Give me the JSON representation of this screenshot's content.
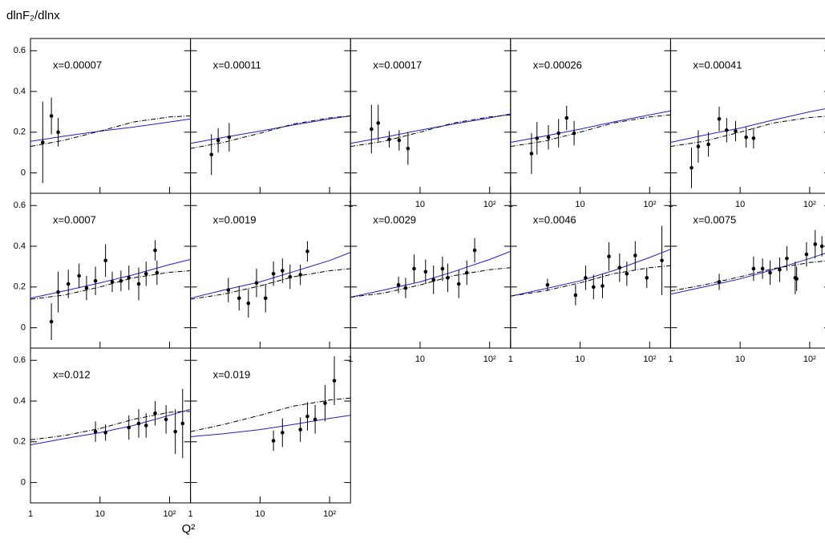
{
  "title": "dlnF₂/dlnx",
  "x_label": "Q²",
  "chart_data": [
    {
      "type": "scatter",
      "label": "x=0.00007",
      "x": [
        1.5,
        2.0,
        2.5
      ],
      "values": [
        0.15,
        0.28,
        0.2
      ],
      "errors": [
        0.2,
        0.09,
        0.07
      ],
      "lines": [
        {
          "style": "solid",
          "color": "#1f1fd0",
          "x": [
            1,
            3,
            10,
            30,
            100,
            200
          ],
          "values": [
            0.155,
            0.18,
            0.205,
            0.225,
            0.25,
            0.265
          ]
        },
        {
          "style": "dashdot",
          "color": "#000000",
          "x": [
            1,
            3,
            10,
            30,
            100,
            200
          ],
          "values": [
            0.13,
            0.16,
            0.205,
            0.25,
            0.275,
            0.28
          ]
        }
      ],
      "xlim": [
        1,
        200
      ],
      "ylim": [
        -0.1,
        0.66
      ],
      "log_x": true,
      "xticks": [
        1,
        10,
        {
          "value": 100,
          "label": "10²"
        }
      ],
      "yticks": [
        0,
        0.2,
        0.4,
        0.6
      ],
      "xtick_labels": false,
      "ytick_labels": true
    },
    {
      "type": "scatter",
      "label": "x=0.00011",
      "x": [
        2.0,
        2.5,
        3.6
      ],
      "values": [
        0.09,
        0.16,
        0.175
      ],
      "errors": [
        0.1,
        0.06,
        0.07
      ],
      "lines": [
        {
          "style": "solid",
          "color": "#1f1fd0",
          "x": [
            1,
            3,
            10,
            30,
            100,
            200
          ],
          "values": [
            0.145,
            0.175,
            0.205,
            0.235,
            0.265,
            0.28
          ]
        },
        {
          "style": "dashdot",
          "color": "#000000",
          "x": [
            1,
            3,
            10,
            30,
            100,
            200
          ],
          "values": [
            0.12,
            0.15,
            0.195,
            0.24,
            0.27,
            0.28
          ]
        }
      ],
      "xlim": [
        1,
        200
      ],
      "ylim": [
        -0.1,
        0.66
      ],
      "log_x": true,
      "xticks": [
        1,
        10,
        {
          "value": 100,
          "label": "10²"
        }
      ],
      "yticks": [
        0,
        0.2,
        0.4,
        0.6
      ],
      "xtick_labels": false,
      "ytick_labels": false
    },
    {
      "type": "scatter",
      "label": "x=0.00017",
      "x": [
        2.0,
        2.5,
        3.6,
        5.0,
        6.7
      ],
      "values": [
        0.215,
        0.245,
        0.165,
        0.16,
        0.12
      ],
      "errors": [
        0.12,
        0.09,
        0.04,
        0.05,
        0.08
      ],
      "lines": [
        {
          "style": "solid",
          "color": "#1f1fd0",
          "x": [
            1,
            3,
            10,
            30,
            100,
            200
          ],
          "values": [
            0.145,
            0.175,
            0.21,
            0.24,
            0.27,
            0.29
          ]
        },
        {
          "style": "dashdot",
          "color": "#000000",
          "x": [
            1,
            3,
            10,
            30,
            100,
            200
          ],
          "values": [
            0.13,
            0.155,
            0.2,
            0.245,
            0.275,
            0.285
          ]
        }
      ],
      "xlim": [
        1,
        200
      ],
      "ylim": [
        -0.1,
        0.66
      ],
      "log_x": true,
      "xticks": [
        1,
        10,
        {
          "value": 100,
          "label": "10²"
        }
      ],
      "yticks": [
        0,
        0.2,
        0.4,
        0.6
      ],
      "xtick_labels": true,
      "ytick_labels": false
    },
    {
      "type": "scatter",
      "label": "x=0.00026",
      "x": [
        2.0,
        2.4,
        3.5,
        4.9,
        6.4,
        8.2
      ],
      "values": [
        0.095,
        0.17,
        0.175,
        0.195,
        0.27,
        0.195
      ],
      "errors": [
        0.1,
        0.08,
        0.06,
        0.07,
        0.06,
        0.06
      ],
      "lines": [
        {
          "style": "solid",
          "color": "#1f1fd0",
          "x": [
            1,
            3,
            10,
            30,
            100,
            200
          ],
          "values": [
            0.15,
            0.18,
            0.215,
            0.25,
            0.285,
            0.305
          ]
        },
        {
          "style": "dashdot",
          "color": "#000000",
          "x": [
            1,
            3,
            10,
            30,
            100,
            200
          ],
          "values": [
            0.13,
            0.155,
            0.2,
            0.245,
            0.275,
            0.285
          ]
        }
      ],
      "xlim": [
        1,
        200
      ],
      "ylim": [
        -0.1,
        0.66
      ],
      "log_x": true,
      "xticks": [
        1,
        10,
        {
          "value": 100,
          "label": "10²"
        }
      ],
      "yticks": [
        0,
        0.2,
        0.4,
        0.6
      ],
      "xtick_labels": true,
      "ytick_labels": false
    },
    {
      "type": "scatter",
      "label": "x=0.00041",
      "x": [
        2.0,
        2.5,
        3.5,
        5.0,
        6.4,
        8.6,
        12.2,
        15.6
      ],
      "values": [
        0.025,
        0.13,
        0.14,
        0.265,
        0.21,
        0.205,
        0.175,
        0.17
      ],
      "errors": [
        0.1,
        0.08,
        0.06,
        0.06,
        0.06,
        0.05,
        0.05,
        0.05
      ],
      "lines": [
        {
          "style": "solid",
          "color": "#1f1fd0",
          "x": [
            1,
            3,
            10,
            30,
            100,
            200
          ],
          "values": [
            0.15,
            0.185,
            0.22,
            0.26,
            0.3,
            0.32
          ]
        },
        {
          "style": "dashdot",
          "color": "#000000",
          "x": [
            1,
            3,
            10,
            30,
            100,
            200
          ],
          "values": [
            0.13,
            0.155,
            0.2,
            0.245,
            0.272,
            0.28
          ]
        }
      ],
      "xlim": [
        1,
        200
      ],
      "ylim": [
        -0.1,
        0.66
      ],
      "log_x": true,
      "xticks": [
        1,
        10,
        {
          "value": 100,
          "label": "10²"
        }
      ],
      "yticks": [
        0,
        0.2,
        0.4,
        0.6
      ],
      "xtick_labels": true,
      "ytick_labels": false
    },
    {
      "type": "scatter",
      "label": "x=0.0007",
      "x": [
        2.0,
        2.5,
        3.5,
        5.0,
        6.4,
        8.6,
        12,
        15,
        20,
        26,
        36,
        46,
        62,
        66
      ],
      "values": [
        0.03,
        0.175,
        0.215,
        0.255,
        0.195,
        0.23,
        0.33,
        0.225,
        0.23,
        0.245,
        0.215,
        0.265,
        0.38,
        0.27
      ],
      "errors": [
        0.09,
        0.1,
        0.07,
        0.06,
        0.06,
        0.07,
        0.08,
        0.05,
        0.05,
        0.06,
        0.08,
        0.06,
        0.05,
        0.06
      ],
      "lines": [
        {
          "style": "solid",
          "color": "#1f1fd0",
          "x": [
            1,
            3,
            10,
            30,
            100,
            200
          ],
          "values": [
            0.145,
            0.18,
            0.22,
            0.26,
            0.31,
            0.335
          ]
        },
        {
          "style": "dashdot",
          "color": "#000000",
          "x": [
            1,
            3,
            10,
            30,
            100,
            200
          ],
          "values": [
            0.14,
            0.16,
            0.2,
            0.245,
            0.272,
            0.28
          ]
        }
      ],
      "xlim": [
        1,
        200
      ],
      "ylim": [
        -0.1,
        0.66
      ],
      "log_x": true,
      "xticks": [
        1,
        10,
        {
          "value": 100,
          "label": "10²"
        }
      ],
      "yticks": [
        0,
        0.2,
        0.4,
        0.6
      ],
      "xtick_labels": false,
      "ytick_labels": true
    },
    {
      "type": "scatter",
      "label": "x=0.0019",
      "x": [
        3.5,
        5.0,
        6.8,
        8.9,
        12,
        15.6,
        21,
        27,
        38,
        48
      ],
      "values": [
        0.185,
        0.145,
        0.12,
        0.22,
        0.145,
        0.265,
        0.28,
        0.25,
        0.26,
        0.375
      ],
      "errors": [
        0.06,
        0.06,
        0.07,
        0.07,
        0.07,
        0.06,
        0.06,
        0.06,
        0.05,
        0.05
      ],
      "lines": [
        {
          "style": "solid",
          "color": "#1f1fd0",
          "x": [
            1,
            3,
            10,
            30,
            100,
            200
          ],
          "values": [
            0.145,
            0.185,
            0.225,
            0.275,
            0.33,
            0.37
          ]
        },
        {
          "style": "dashdot",
          "color": "#000000",
          "x": [
            1,
            3,
            10,
            30,
            100,
            200
          ],
          "values": [
            0.14,
            0.165,
            0.205,
            0.25,
            0.28,
            0.29
          ]
        }
      ],
      "xlim": [
        1,
        200
      ],
      "ylim": [
        -0.1,
        0.66
      ],
      "log_x": true,
      "xticks": [
        1,
        10,
        {
          "value": 100,
          "label": "10²"
        }
      ],
      "yticks": [
        0,
        0.2,
        0.4,
        0.6
      ],
      "xtick_labels": false,
      "ytick_labels": false
    },
    {
      "type": "scatter",
      "label": "x=0.0029",
      "x": [
        4.9,
        6.2,
        8.2,
        12,
        15.6,
        21,
        25,
        36,
        47,
        61
      ],
      "values": [
        0.21,
        0.195,
        0.29,
        0.275,
        0.235,
        0.29,
        0.245,
        0.215,
        0.27,
        0.38
      ],
      "errors": [
        0.04,
        0.05,
        0.07,
        0.06,
        0.07,
        0.06,
        0.07,
        0.07,
        0.06,
        0.06
      ],
      "lines": [
        {
          "style": "solid",
          "color": "#1f1fd0",
          "x": [
            1,
            3,
            10,
            30,
            100,
            200
          ],
          "values": [
            0.15,
            0.185,
            0.225,
            0.275,
            0.335,
            0.375
          ]
        },
        {
          "style": "dashdot",
          "color": "#000000",
          "x": [
            1,
            3,
            10,
            30,
            100,
            200
          ],
          "values": [
            0.15,
            0.17,
            0.21,
            0.255,
            0.285,
            0.295
          ]
        }
      ],
      "xlim": [
        1,
        200
      ],
      "ylim": [
        -0.1,
        0.66
      ],
      "log_x": true,
      "xticks": [
        1,
        10,
        {
          "value": 100,
          "label": "10²"
        }
      ],
      "yticks": [
        0,
        0.2,
        0.4,
        0.6
      ],
      "xtick_labels": true,
      "ytick_labels": false
    },
    {
      "type": "scatter",
      "label": "x=0.0046",
      "x": [
        3.4,
        8.6,
        12,
        15.6,
        21,
        26,
        37,
        47,
        62,
        91,
        150
      ],
      "values": [
        0.21,
        0.16,
        0.245,
        0.2,
        0.205,
        0.35,
        0.295,
        0.265,
        0.355,
        0.245,
        0.33
      ],
      "errors": [
        0.03,
        0.05,
        0.06,
        0.06,
        0.06,
        0.07,
        0.07,
        0.06,
        0.07,
        0.05,
        0.17
      ],
      "lines": [
        {
          "style": "solid",
          "color": "#1f1fd0",
          "x": [
            1,
            3,
            10,
            30,
            100,
            200
          ],
          "values": [
            0.155,
            0.19,
            0.23,
            0.28,
            0.345,
            0.385
          ]
        },
        {
          "style": "dashdot",
          "color": "#000000",
          "x": [
            1,
            3,
            10,
            30,
            100,
            200
          ],
          "values": [
            0.155,
            0.18,
            0.22,
            0.265,
            0.295,
            0.305
          ]
        }
      ],
      "xlim": [
        1,
        200
      ],
      "ylim": [
        -0.1,
        0.66
      ],
      "log_x": true,
      "xticks": [
        1,
        10,
        {
          "value": 100,
          "label": "10²"
        }
      ],
      "yticks": [
        0,
        0.2,
        0.4,
        0.6
      ],
      "xtick_labels": true,
      "ytick_labels": false
    },
    {
      "type": "scatter",
      "label": "x=0.0075",
      "x": [
        5.0,
        15.6,
        21,
        27,
        37,
        47,
        62,
        65,
        90,
        120,
        150
      ],
      "values": [
        0.225,
        0.29,
        0.29,
        0.27,
        0.285,
        0.34,
        0.245,
        0.24,
        0.36,
        0.41,
        0.4
      ],
      "errors": [
        0.04,
        0.06,
        0.05,
        0.06,
        0.06,
        0.06,
        0.08,
        0.06,
        0.06,
        0.07,
        0.05
      ],
      "lines": [
        {
          "style": "solid",
          "color": "#1f1fd0",
          "x": [
            1,
            3,
            10,
            30,
            100,
            200
          ],
          "values": [
            0.165,
            0.2,
            0.24,
            0.285,
            0.34,
            0.375
          ]
        },
        {
          "style": "dashdot",
          "color": "#000000",
          "x": [
            1,
            3,
            10,
            30,
            100,
            200
          ],
          "values": [
            0.18,
            0.21,
            0.25,
            0.29,
            0.32,
            0.33
          ]
        }
      ],
      "xlim": [
        1,
        200
      ],
      "ylim": [
        -0.1,
        0.66
      ],
      "log_x": true,
      "xticks": [
        1,
        10,
        {
          "value": 100,
          "label": "10²"
        }
      ],
      "yticks": [
        0,
        0.2,
        0.4,
        0.6
      ],
      "xtick_labels": true,
      "ytick_labels": false
    },
    {
      "type": "scatter",
      "label": "x=0.012",
      "x": [
        8.6,
        12,
        26,
        36,
        46,
        62,
        89,
        121,
        154
      ],
      "values": [
        0.25,
        0.245,
        0.27,
        0.29,
        0.28,
        0.34,
        0.31,
        0.25,
        0.29
      ],
      "errors": [
        0.05,
        0.04,
        0.06,
        0.07,
        0.06,
        0.06,
        0.07,
        0.11,
        0.17
      ],
      "lines": [
        {
          "style": "solid",
          "color": "#1f1fd0",
          "x": [
            1,
            3,
            10,
            30,
            100,
            200
          ],
          "values": [
            0.185,
            0.215,
            0.245,
            0.28,
            0.33,
            0.36
          ]
        },
        {
          "style": "dashdot",
          "color": "#000000",
          "x": [
            1,
            3,
            10,
            30,
            100,
            200
          ],
          "values": [
            0.21,
            0.23,
            0.265,
            0.31,
            0.345,
            0.35
          ]
        }
      ],
      "xlim": [
        1,
        200
      ],
      "ylim": [
        -0.1,
        0.66
      ],
      "log_x": true,
      "xticks": [
        1,
        10,
        {
          "value": 100,
          "label": "10²"
        }
      ],
      "yticks": [
        0,
        0.2,
        0.4,
        0.6
      ],
      "xtick_labels": true,
      "ytick_labels": true
    },
    {
      "type": "scatter",
      "label": "x=0.019",
      "x": [
        15.6,
        21,
        38,
        48,
        62,
        86,
        117
      ],
      "values": [
        0.205,
        0.245,
        0.26,
        0.325,
        0.31,
        0.39,
        0.5
      ],
      "errors": [
        0.05,
        0.07,
        0.06,
        0.07,
        0.07,
        0.09,
        0.12
      ],
      "lines": [
        {
          "style": "solid",
          "color": "#1f1fd0",
          "x": [
            1,
            3,
            10,
            30,
            100,
            200
          ],
          "values": [
            0.225,
            0.24,
            0.26,
            0.285,
            0.315,
            0.33
          ]
        },
        {
          "style": "dashdot",
          "color": "#000000",
          "x": [
            1,
            3,
            10,
            30,
            100,
            200
          ],
          "values": [
            0.25,
            0.285,
            0.33,
            0.375,
            0.405,
            0.415
          ]
        }
      ],
      "xlim": [
        1,
        200
      ],
      "ylim": [
        -0.1,
        0.66
      ],
      "log_x": true,
      "xticks": [
        1,
        10,
        {
          "value": 100,
          "label": "10²"
        }
      ],
      "yticks": [
        0,
        0.2,
        0.4,
        0.6
      ],
      "xtick_labels": true,
      "ytick_labels": false
    }
  ]
}
